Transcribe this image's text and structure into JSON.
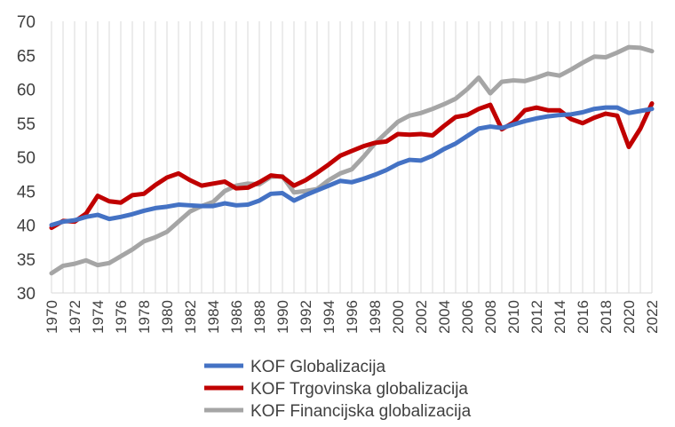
{
  "chart_data": {
    "type": "line",
    "title": "",
    "xlabel": "",
    "ylabel": "",
    "ylim": [
      30,
      70
    ],
    "yticks": [
      30,
      35,
      40,
      45,
      50,
      55,
      60,
      65,
      70
    ],
    "x": [
      1970,
      1971,
      1972,
      1973,
      1974,
      1975,
      1976,
      1977,
      1978,
      1979,
      1980,
      1981,
      1982,
      1983,
      1984,
      1985,
      1986,
      1987,
      1988,
      1989,
      1990,
      1991,
      1992,
      1993,
      1994,
      1995,
      1996,
      1997,
      1998,
      1999,
      2000,
      2001,
      2002,
      2003,
      2004,
      2005,
      2006,
      2007,
      2008,
      2009,
      2010,
      2011,
      2012,
      2013,
      2014,
      2015,
      2016,
      2017,
      2018,
      2019,
      2020,
      2021,
      2022
    ],
    "xticks": [
      1970,
      1972,
      1974,
      1976,
      1978,
      1980,
      1982,
      1984,
      1986,
      1988,
      1990,
      1992,
      1994,
      1996,
      1998,
      2000,
      2002,
      2004,
      2006,
      2008,
      2010,
      2012,
      2014,
      2016,
      2018,
      2020,
      2022
    ],
    "grid": "vertical",
    "legend_position": "bottom",
    "series": [
      {
        "name": "KOF Globalizacija",
        "color": "#4472C4",
        "values": [
          40.0,
          40.5,
          40.7,
          41.2,
          41.5,
          40.9,
          41.2,
          41.6,
          42.1,
          42.5,
          42.7,
          43.0,
          42.9,
          42.8,
          42.8,
          43.2,
          42.9,
          43.0,
          43.6,
          44.6,
          44.7,
          43.6,
          44.4,
          45.1,
          45.8,
          46.5,
          46.3,
          46.8,
          47.4,
          48.1,
          49.0,
          49.6,
          49.5,
          50.2,
          51.2,
          52.0,
          53.1,
          54.2,
          54.5,
          54.3,
          54.8,
          55.3,
          55.7,
          56.0,
          56.2,
          56.3,
          56.6,
          57.1,
          57.3,
          57.3,
          56.5,
          56.8,
          57.1
        ]
      },
      {
        "name": "KOF Trgovinska globalizacija",
        "color": "#C00000",
        "values": [
          39.6,
          40.6,
          40.5,
          41.7,
          44.3,
          43.5,
          43.3,
          44.4,
          44.6,
          45.9,
          47.0,
          47.6,
          46.6,
          45.8,
          46.1,
          46.4,
          45.4,
          45.5,
          46.3,
          47.3,
          47.1,
          45.8,
          46.6,
          47.7,
          48.9,
          50.2,
          50.9,
          51.6,
          52.1,
          52.3,
          53.4,
          53.3,
          53.4,
          53.2,
          54.6,
          55.9,
          56.2,
          57.1,
          57.7,
          54.1,
          55.1,
          56.9,
          57.3,
          56.9,
          56.9,
          55.6,
          55.0,
          55.8,
          56.4,
          56.1,
          51.5,
          54.2,
          57.9
        ]
      },
      {
        "name": "KOF Financijska globalizacija",
        "color": "#A5A5A5",
        "values": [
          32.9,
          34.0,
          34.3,
          34.8,
          34.1,
          34.4,
          35.4,
          36.4,
          37.6,
          38.2,
          39.0,
          40.5,
          42.0,
          42.8,
          43.4,
          45.0,
          45.8,
          46.1,
          46.0,
          47.1,
          47.2,
          44.8,
          45.0,
          45.3,
          46.6,
          47.6,
          48.2,
          50.0,
          52.0,
          53.6,
          55.2,
          56.1,
          56.5,
          57.1,
          57.8,
          58.6,
          60.0,
          61.7,
          59.4,
          61.1,
          61.3,
          61.2,
          61.7,
          62.3,
          62.0,
          62.9,
          63.9,
          64.8,
          64.7,
          65.4,
          66.2,
          66.1,
          65.6
        ]
      }
    ]
  }
}
